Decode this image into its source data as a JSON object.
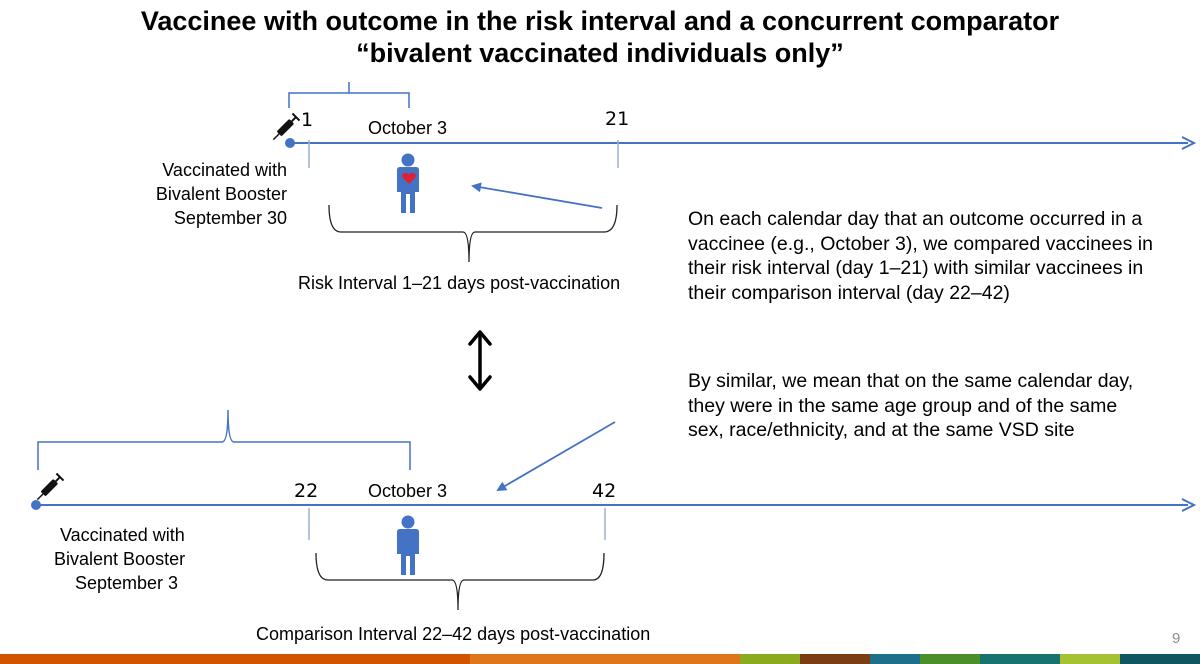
{
  "title": {
    "line1": "Vaccinee with outcome in the risk interval and a concurrent comparator",
    "line2": "“bivalent vaccinated individuals only”"
  },
  "top_timeline": {
    "day_start": "1",
    "date_label": "October 3",
    "day_end": "21",
    "vaccinated_line1": "Vaccinated with",
    "vaccinated_line2": "Bivalent Booster",
    "vaccinated_line3": "September 30",
    "interval_label": "Risk Interval  1–21 days post-vaccination"
  },
  "bottom_timeline": {
    "day_start": "22",
    "date_label": "October 3",
    "day_end": "42",
    "vaccinated_line1": "Vaccinated with",
    "vaccinated_line2": "Bivalent Booster",
    "vaccinated_line3": "September 3",
    "interval_label": "Comparison Interval  22–42 days post-vaccination"
  },
  "explanation": {
    "paragraph1": "On each calendar day that an outcome occurred in a vaccinee (e.g., October 3), we compared vaccinees in their risk interval (day 1–21) with similar vaccinees in their comparison interval (day 22–42)",
    "paragraph2": "By similar, we mean that on the same calendar day, they were in the same age group and of the same sex, race/ethnicity, and at the same VSD site"
  },
  "page_number": "9",
  "colors": {
    "timeline": "#4472c4",
    "heart": "#e02030",
    "footer": [
      "#d35400",
      "#e0761c",
      "#8aab1e",
      "#7a3e12",
      "#1d6f8a",
      "#4a8f2a",
      "#17736d",
      "#a4c232",
      "#0f5660"
    ]
  }
}
